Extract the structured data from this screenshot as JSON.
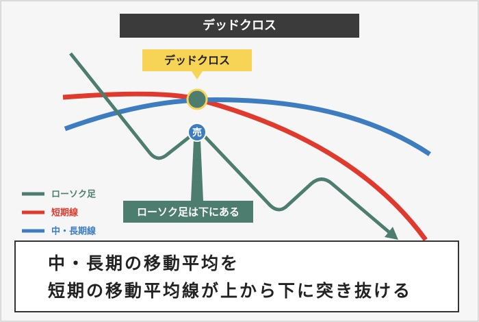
{
  "header": {
    "title": "デッドクロス"
  },
  "callout": {
    "label": "デッドクロス"
  },
  "sell_marker": {
    "label": "売"
  },
  "note": {
    "label": "ローソク足は下にある"
  },
  "legend": {
    "items": [
      {
        "label": "ローソク足"
      },
      {
        "label": "短期線"
      },
      {
        "label": "中・長期線"
      }
    ]
  },
  "caption": {
    "lines": [
      "中・長期の移動平均を",
      "短期の移動平均線が上から下に突き抜ける"
    ]
  }
}
